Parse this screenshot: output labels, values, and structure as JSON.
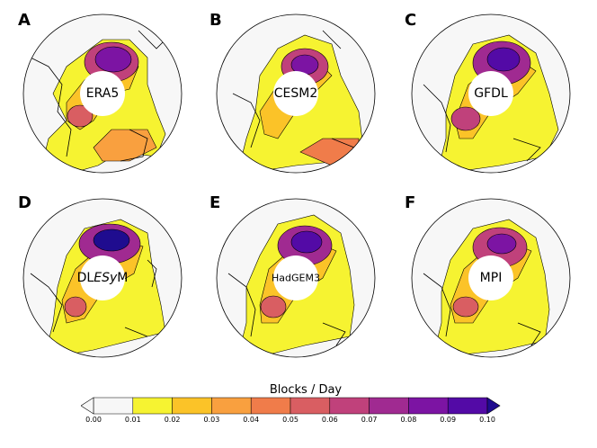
{
  "colormap": [
    "#f7f7f7",
    "#f6f331",
    "#fbc328",
    "#f9a03f",
    "#f07c4a",
    "#d95e62",
    "#c0417b",
    "#a02a91",
    "#7c14a3",
    "#530aa6",
    "#1f0c8f"
  ],
  "land_line": "#000000",
  "panels": [
    {
      "letter": "A",
      "model": "ERA5"
    },
    {
      "letter": "B",
      "model": "CESM2"
    },
    {
      "letter": "C",
      "model": "GFDL"
    },
    {
      "letter": "D",
      "model_parts": [
        "DL",
        "ESy",
        "M"
      ]
    },
    {
      "letter": "E",
      "model": "HadGEM3"
    },
    {
      "letter": "F",
      "model": "MPI"
    }
  ],
  "colorbar": {
    "title": "Blocks / Day",
    "ticks": [
      "0.00",
      "0.01",
      "0.02",
      "0.03",
      "0.04",
      "0.05",
      "0.06",
      "0.07",
      "0.08",
      "0.09",
      "0.10"
    ]
  }
}
